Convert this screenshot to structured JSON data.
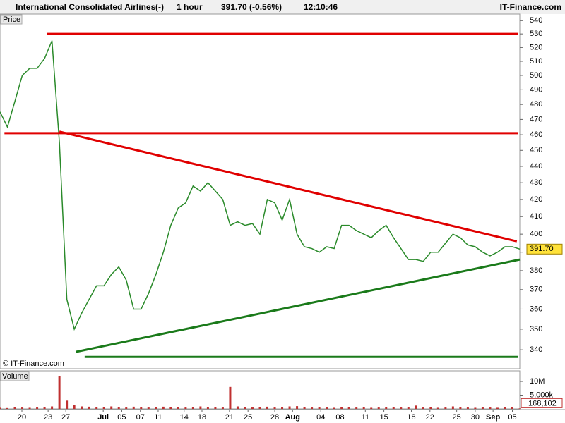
{
  "chart_data": {
    "type": "line",
    "title": "International Consolidated Airlines",
    "subtitle_parts": [
      "(-)",
      "1 hour",
      "391.70 (-0.56%)",
      "12:10:46"
    ],
    "brand": "IT-Finance.com",
    "panel_label": "Price",
    "copyright": "© IT-Finance.com",
    "log_scale": true,
    "grid": false,
    "x": [
      0,
      1,
      2,
      3,
      4,
      5,
      6,
      7,
      8,
      9,
      10,
      11,
      12,
      13,
      14,
      15,
      16,
      17,
      18,
      19,
      20,
      21,
      22,
      23,
      24,
      25,
      26,
      27,
      28,
      29,
      30,
      31,
      32,
      33,
      34,
      35,
      36,
      37,
      38,
      39,
      40,
      41,
      42,
      43,
      44,
      45,
      46,
      47,
      48,
      49,
      50,
      51,
      52,
      53,
      54,
      55,
      56,
      57,
      58,
      59,
      60,
      61,
      62,
      63,
      64,
      65,
      66,
      67,
      68,
      69,
      70
    ],
    "series": [
      {
        "color": "#2a8a2a",
        "values": [
          475,
          465,
          482,
          500,
          505,
          505,
          512,
          525,
          455,
          365,
          350,
          358,
          365,
          372,
          372,
          378,
          382,
          375,
          360,
          360,
          368,
          378,
          390,
          405,
          415,
          418,
          428,
          425,
          430,
          425,
          420,
          405,
          407,
          405,
          406,
          400,
          420,
          418,
          408,
          420,
          400,
          393,
          392,
          390,
          393,
          392,
          405,
          405,
          402,
          400,
          398,
          402,
          405,
          398,
          392,
          386,
          386,
          385,
          390,
          390,
          395,
          400,
          398,
          394,
          393,
          390,
          388,
          390,
          393,
          393,
          391.7
        ]
      }
    ],
    "last_price": {
      "value": 391.7,
      "label": "391.70"
    },
    "xlim": [
      0,
      70
    ],
    "xticks": [
      {
        "value": 2.95,
        "label": "20"
      },
      {
        "value": 6.48,
        "label": "23"
      },
      {
        "value": 8.86,
        "label": "27"
      },
      {
        "value": 13.9,
        "label": "Jul"
      },
      {
        "value": 16.4,
        "label": "05"
      },
      {
        "value": 18.9,
        "label": "07"
      },
      {
        "value": 21.3,
        "label": "11"
      },
      {
        "value": 24.8,
        "label": "14"
      },
      {
        "value": 27.2,
        "label": "18"
      },
      {
        "value": 30.9,
        "label": "21"
      },
      {
        "value": 33.4,
        "label": "25"
      },
      {
        "value": 37.0,
        "label": "28"
      },
      {
        "value": 39.4,
        "label": "Aug"
      },
      {
        "value": 43.2,
        "label": "04"
      },
      {
        "value": 45.8,
        "label": "08"
      },
      {
        "value": 49.2,
        "label": "11"
      },
      {
        "value": 51.7,
        "label": "15"
      },
      {
        "value": 55.4,
        "label": "18"
      },
      {
        "value": 57.9,
        "label": "22"
      },
      {
        "value": 61.5,
        "label": "25"
      },
      {
        "value": 64.0,
        "label": "30"
      },
      {
        "value": 66.4,
        "label": "Sep"
      },
      {
        "value": 69.0,
        "label": "05"
      }
    ],
    "ylim": [
      331.4,
      545
    ],
    "yticks": [
      340,
      350,
      360,
      370,
      380,
      390,
      400,
      410,
      420,
      430,
      440,
      450,
      460,
      470,
      480,
      490,
      500,
      510,
      520,
      530,
      540
    ],
    "lines": [
      {
        "color": "#e00000",
        "points": [
          [
            6.3,
            530
          ],
          [
            69.8,
            530
          ]
        ]
      },
      {
        "color": "#e00000",
        "points": [
          [
            0.6,
            461
          ],
          [
            69.8,
            461
          ]
        ]
      },
      {
        "color": "#e00000",
        "points": [
          [
            8.0,
            462
          ],
          [
            69.6,
            396
          ]
        ]
      },
      {
        "color": "#1a7a1a",
        "points": [
          [
            10.2,
            339
          ],
          [
            70,
            386
          ]
        ]
      },
      {
        "color": "#1a7a1a",
        "points": [
          [
            11.4,
            336.6
          ],
          [
            69.8,
            336.6
          ]
        ]
      }
    ],
    "volume": {
      "panel_label": "Volume",
      "color": "#c03030",
      "values": [
        400000,
        300000,
        600000,
        500000,
        400000,
        500000,
        700000,
        900000,
        12000000,
        3000000,
        1500000,
        900000,
        800000,
        600000,
        700000,
        900000,
        600000,
        500000,
        800000,
        600000,
        500000,
        700000,
        800000,
        600000,
        700000,
        500000,
        600000,
        900000,
        700000,
        600000,
        500000,
        8000000,
        900000,
        600000,
        500000,
        700000,
        800000,
        500000,
        600000,
        900000,
        1000000,
        700000,
        500000,
        600000,
        500000,
        400000,
        700000,
        600000,
        500000,
        600000,
        400000,
        500000,
        600000,
        700000,
        500000,
        600000,
        1200000,
        500000,
        600000,
        400000,
        500000,
        900000,
        600000,
        500000,
        400000,
        600000,
        500000,
        400000,
        700000,
        600000,
        168102
      ],
      "last": {
        "value": 168102,
        "label": "168,102"
      },
      "ylim": [
        0,
        13600000
      ],
      "yticks": [
        {
          "value": 10000000,
          "label": "10M"
        },
        {
          "value": 5000000,
          "label": "5,000k"
        }
      ]
    }
  }
}
